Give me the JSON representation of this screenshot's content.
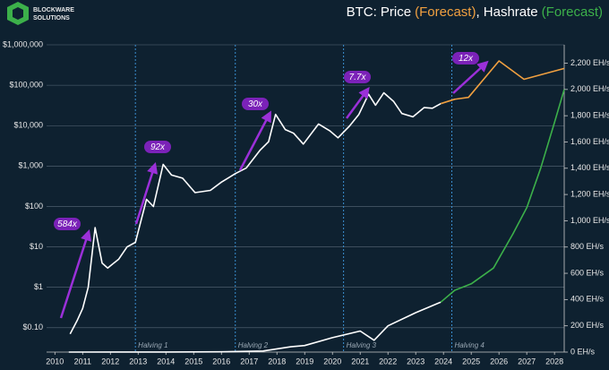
{
  "logo": [
    "BLOCKWARE",
    "SOLUTIONS"
  ],
  "chart_data": {
    "type": "line",
    "title_parts": [
      {
        "text": "BTC: Price",
        "color": "#ffffff"
      },
      {
        "text": "(Forecast)",
        "color": "#f0a040"
      },
      {
        "text": ", Hashrate",
        "color": "#ffffff"
      },
      {
        "text": "(Forecast)",
        "color": "#3cb04a"
      }
    ],
    "xlim": [
      2009.7,
      2028.35
    ],
    "xticks": [
      2010,
      2011,
      2012,
      2013,
      2014,
      2015,
      2016,
      2017,
      2018,
      2019,
      2020,
      2021,
      2022,
      2023,
      2024,
      2025,
      2026,
      2027,
      2028
    ],
    "ylog": true,
    "ylim": [
      0.025,
      1000000
    ],
    "yticks": [
      {
        "value": 0.1,
        "label": "$0.10"
      },
      {
        "value": 1,
        "label": "$1"
      },
      {
        "value": 10,
        "label": "$10"
      },
      {
        "value": 100,
        "label": "$100"
      },
      {
        "value": 1000,
        "label": "$1,000"
      },
      {
        "value": 10000,
        "label": "$10,000"
      },
      {
        "value": 100000,
        "label": "$100,000"
      },
      {
        "value": 1000000,
        "label": "$1,000,000"
      }
    ],
    "y2lim": [
      0,
      2340
    ],
    "y2ticks": [
      {
        "value": 0,
        "label": "0 EH/s"
      },
      {
        "value": 200,
        "label": "200 EH/s"
      },
      {
        "value": 400,
        "label": "400 EH/s"
      },
      {
        "value": 600,
        "label": "600 EH/s"
      },
      {
        "value": 800,
        "label": "800 EH/s"
      },
      {
        "value": 1000,
        "label": "1,000 EH/s"
      },
      {
        "value": 1200,
        "label": "1,200 EH/s"
      },
      {
        "value": 1400,
        "label": "1,400 EH/s"
      },
      {
        "value": 1600,
        "label": "1,600 EH/s"
      },
      {
        "value": 1800,
        "label": "1,800 EH/s"
      },
      {
        "value": 2000,
        "label": "2,000 EH/s"
      },
      {
        "value": 2200,
        "label": "2,200 EH/s"
      }
    ],
    "grid": true,
    "series": [
      {
        "color": "#ffffff",
        "axis": "y",
        "x": [
          2010.55,
          2010.8,
          2011.0,
          2011.2,
          2011.45,
          2011.7,
          2011.9,
          2012.3,
          2012.6,
          2012.9,
          2013.3,
          2013.55,
          2013.9,
          2014.2,
          2014.6,
          2015.05,
          2015.6,
          2016.0,
          2016.5,
          2016.9,
          2017.4,
          2017.7,
          2017.95,
          2018.3,
          2018.6,
          2018.95,
          2019.5,
          2019.9,
          2020.2,
          2020.6,
          2020.95,
          2021.3,
          2021.55,
          2021.85,
          2022.2,
          2022.5,
          2022.9,
          2023.3,
          2023.6,
          2023.9
        ],
        "values": [
          0.07,
          0.15,
          0.3,
          1,
          30,
          4,
          3,
          5,
          10,
          13,
          150,
          100,
          1100,
          600,
          500,
          220,
          250,
          400,
          650,
          900,
          2500,
          4000,
          19000,
          8000,
          6500,
          3500,
          11000,
          7500,
          5000,
          9500,
          19000,
          60000,
          32000,
          65000,
          40000,
          20000,
          16500,
          28000,
          27000,
          35000
        ]
      },
      {
        "color": "#f0a040",
        "axis": "y",
        "x": [
          2023.9,
          2024.4,
          2024.9,
          2026.0,
          2026.9,
          2028.35
        ],
        "values": [
          35000,
          45000,
          50000,
          400000,
          140000,
          260000
        ]
      },
      {
        "color": "#ffffff",
        "axis": "y2",
        "x": [
          2010.5,
          2014.0,
          2016.0,
          2017.5,
          2018.5,
          2019.0,
          2020.0,
          2021.0,
          2021.5,
          2022.0,
          2023.0,
          2023.9
        ],
        "values": [
          0,
          0.5,
          2,
          8,
          40,
          50,
          110,
          160,
          90,
          200,
          300,
          380
        ]
      },
      {
        "color": "#3cb04a",
        "axis": "y2",
        "x": [
          2023.9,
          2024.4,
          2025.0,
          2025.8,
          2026.5,
          2027.0,
          2027.5,
          2028.0,
          2028.35
        ],
        "values": [
          380,
          470,
          520,
          640,
          900,
          1100,
          1400,
          1750,
          2000
        ]
      }
    ],
    "halvings": [
      {
        "x": 2012.9,
        "label": "Halving 1"
      },
      {
        "x": 2016.5,
        "label": "Halving 2"
      },
      {
        "x": 2020.4,
        "label": "Halving 3"
      },
      {
        "x": 2024.3,
        "label": "Halving 4"
      }
    ],
    "annotations": [
      "584x",
      "92x",
      "30x",
      "7.7x",
      "12x"
    ]
  }
}
